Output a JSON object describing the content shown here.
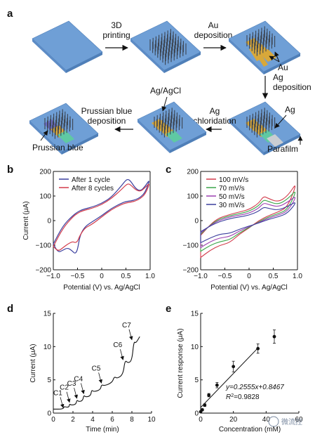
{
  "panel_labels": {
    "a": "a",
    "b": "b",
    "c": "c",
    "d": "d",
    "e": "e"
  },
  "panel_a": {
    "steps": {
      "printing_1": "3D",
      "printing_2": "printing",
      "au_1": "Au",
      "au_2": "deposition",
      "ag_1": "Ag",
      "ag_2": "deposition",
      "agcl_1": "Ag",
      "agcl_2": "chloridation",
      "pb_1": "Prussian blue",
      "pb_2": "deposition"
    },
    "labels": {
      "au": "Au",
      "ag": "Ag",
      "parafilm": "Parafilm",
      "agagcl": "Ag/AgCl",
      "prussian_blue": "Prussian blue"
    },
    "colors": {
      "substrate": "#6f9fd6",
      "needles": "#3c4450",
      "gold": "#d8a83a",
      "silver": "#c9cdd2",
      "green": "#5fc9a3",
      "prussian": "#6b6fc7"
    }
  },
  "chart_data": [
    {
      "panel": "b",
      "type": "line",
      "xlabel": "Potential (V) vs. Ag/AgCl",
      "ylabel": "Current (μA)",
      "xlim": [
        -1.0,
        1.0
      ],
      "ylim": [
        -200,
        200
      ],
      "xticks": [
        "-1.0",
        "-0.5",
        "0",
        "0.5",
        "1.0"
      ],
      "yticks": [
        "-200",
        "-100",
        "0",
        "100",
        "200"
      ],
      "legend_position": "top-left",
      "series": [
        {
          "name": "After 1 cycle",
          "color": "#3b3f9e",
          "x": [
            -1.0,
            -0.8,
            -0.6,
            -0.5,
            -0.4,
            -0.2,
            0.0,
            0.2,
            0.4,
            0.5,
            0.55,
            0.6,
            0.7,
            0.8,
            0.9,
            1.0,
            0.9,
            0.8,
            0.7,
            0.6,
            0.5,
            0.4,
            0.2,
            0.0,
            -0.2,
            -0.35,
            -0.45,
            -0.5,
            -0.55,
            -0.6,
            -0.7,
            -0.8,
            -0.9,
            -1.0
          ],
          "y": [
            -95,
            -20,
            20,
            35,
            45,
            55,
            70,
            95,
            140,
            165,
            168,
            160,
            130,
            120,
            140,
            170,
            115,
            95,
            85,
            80,
            78,
            70,
            50,
            20,
            -5,
            -25,
            -60,
            -120,
            -135,
            -125,
            -110,
            -120,
            -130,
            -95
          ]
        },
        {
          "name": "After 8 cycles",
          "color": "#d23a4a",
          "x": [
            -1.0,
            -0.8,
            -0.6,
            -0.5,
            -0.4,
            -0.2,
            0.0,
            0.2,
            0.4,
            0.5,
            0.55,
            0.6,
            0.7,
            0.8,
            0.9,
            1.0,
            0.9,
            0.8,
            0.7,
            0.6,
            0.5,
            0.4,
            0.2,
            0.0,
            -0.2,
            -0.35,
            -0.45,
            -0.5,
            -0.55,
            -0.6,
            -0.7,
            -0.8,
            -0.9,
            -1.0
          ],
          "y": [
            -105,
            -30,
            15,
            30,
            40,
            50,
            65,
            90,
            125,
            145,
            150,
            145,
            125,
            118,
            135,
            155,
            108,
            90,
            80,
            75,
            72,
            65,
            45,
            15,
            -15,
            -30,
            -60,
            -85,
            -90,
            -85,
            -95,
            -110,
            -125,
            -105
          ]
        }
      ]
    },
    {
      "panel": "c",
      "type": "line",
      "xlabel": "Potential (V) vs. Ag/AgCl",
      "ylabel": "",
      "xlim": [
        -1.0,
        1.0
      ],
      "ylim": [
        -200,
        200
      ],
      "xticks": [
        "-1.0",
        "-0.5",
        "0",
        "0.5",
        "1.0"
      ],
      "yticks": [
        "-200",
        "-100",
        "0",
        "100",
        "200"
      ],
      "legend_position": "top-left",
      "series": [
        {
          "name": "100 mV/s",
          "color": "#d23a4a",
          "x": [
            -1.0,
            -0.7,
            -0.4,
            -0.2,
            0.0,
            0.2,
            0.3,
            0.4,
            0.6,
            0.8,
            1.0,
            0.8,
            0.6,
            0.4,
            0.2,
            0.0,
            -0.2,
            -0.4,
            -0.6,
            -0.8,
            -1.0
          ],
          "y": [
            -60,
            5,
            25,
            35,
            45,
            70,
            100,
            90,
            75,
            100,
            160,
            55,
            35,
            20,
            0,
            -30,
            -55,
            -90,
            -100,
            -120,
            -150
          ]
        },
        {
          "name": "70 mV/s",
          "color": "#3ba64a",
          "x": [
            -1.0,
            -0.7,
            -0.4,
            -0.2,
            0.0,
            0.2,
            0.3,
            0.4,
            0.6,
            0.8,
            1.0,
            0.8,
            0.6,
            0.4,
            0.2,
            0.0,
            -0.2,
            -0.4,
            -0.6,
            -0.8,
            -1.0
          ],
          "y": [
            -55,
            0,
            20,
            28,
            38,
            60,
            85,
            78,
            65,
            88,
            130,
            45,
            28,
            15,
            -5,
            -28,
            -50,
            -78,
            -85,
            -100,
            -125
          ]
        },
        {
          "name": "50 mV/s",
          "color": "#9b3fb0",
          "x": [
            -1.0,
            -0.7,
            -0.4,
            -0.2,
            0.0,
            0.2,
            0.3,
            0.4,
            0.6,
            0.8,
            1.0,
            0.8,
            0.6,
            0.4,
            0.2,
            0.0,
            -0.2,
            -0.4,
            -0.6,
            -0.8,
            -1.0
          ],
          "y": [
            -50,
            -5,
            15,
            22,
            30,
            50,
            72,
            66,
            55,
            75,
            105,
            38,
            22,
            10,
            -8,
            -25,
            -42,
            -65,
            -70,
            -85,
            -110
          ]
        },
        {
          "name": "30 mV/s",
          "color": "#3b3f9e",
          "x": [
            -1.0,
            -0.7,
            -0.4,
            -0.2,
            0.0,
            0.2,
            0.3,
            0.4,
            0.6,
            0.8,
            1.0,
            0.8,
            0.6,
            0.4,
            0.2,
            0.0,
            -0.2,
            -0.4,
            -0.6,
            -0.8,
            -1.0
          ],
          "y": [
            -45,
            -10,
            8,
            15,
            22,
            38,
            55,
            50,
            42,
            58,
            80,
            30,
            15,
            5,
            -10,
            -22,
            -35,
            -52,
            -55,
            -70,
            -90
          ]
        }
      ]
    },
    {
      "panel": "d",
      "type": "line",
      "xlabel": "Time (min)",
      "ylabel": "Current (μA)",
      "xlim": [
        0,
        10
      ],
      "ylim": [
        0,
        15
      ],
      "xticks": [
        "0",
        "2",
        "4",
        "6",
        "8",
        "10"
      ],
      "yticks": [
        "0",
        "5",
        "10",
        "15"
      ],
      "series": [
        {
          "name": "",
          "color": "#111111",
          "x": [
            0.0,
            1.0,
            1.1,
            1.3,
            1.6,
            1.65,
            1.8,
            2.3,
            2.4,
            2.6,
            3.0,
            3.1,
            3.3,
            3.8,
            3.9,
            4.1,
            4.8,
            4.9,
            5.2,
            6.0,
            6.2,
            6.5,
            7.1,
            7.3,
            7.6,
            8.0,
            8.2,
            8.4,
            8.8
          ],
          "y": [
            0.6,
            0.6,
            1.0,
            0.9,
            0.9,
            1.4,
            1.2,
            1.3,
            2.0,
            1.7,
            1.9,
            2.7,
            2.4,
            2.6,
            3.5,
            3.2,
            3.5,
            4.3,
            4.1,
            4.6,
            5.5,
            5.2,
            5.8,
            8.0,
            7.5,
            7.9,
            10.8,
            10.5,
            11.5
          ]
        }
      ],
      "annotations": [
        {
          "label": "C1",
          "x": 1.0,
          "y": 0.6
        },
        {
          "label": "C2",
          "x": 1.65,
          "y": 1.4
        },
        {
          "label": "C3",
          "x": 2.4,
          "y": 2.0
        },
        {
          "label": "C4",
          "x": 3.1,
          "y": 2.7
        },
        {
          "label": "C5",
          "x": 4.9,
          "y": 4.3
        },
        {
          "label": "C6",
          "x": 7.1,
          "y": 7.8
        },
        {
          "label": "C7",
          "x": 8.0,
          "y": 10.8
        }
      ]
    },
    {
      "panel": "e",
      "type": "scatter",
      "xlabel": "Concentration (mM)",
      "ylabel": "Current response (μA)",
      "xlim": [
        0,
        60
      ],
      "ylim": [
        0,
        15
      ],
      "xticks": [
        "0",
        "20",
        "40",
        "60"
      ],
      "yticks": [
        "0",
        "5",
        "10",
        "15"
      ],
      "points": {
        "x": [
          0,
          1,
          2.5,
          5,
          10,
          20,
          35,
          45
        ],
        "y": [
          0.2,
          0.5,
          1.2,
          2.7,
          4.2,
          7.0,
          9.7,
          11.5
        ],
        "err": [
          0.1,
          0.15,
          0.2,
          0.25,
          0.4,
          0.8,
          0.7,
          1.0
        ]
      },
      "fit": {
        "slope": 0.2555,
        "intercept": 0.8467,
        "x_range": [
          0,
          35
        ]
      },
      "equation": "y=0.2555x+0.8467",
      "r2_prefix": "R",
      "r2_sup": "2",
      "r2_value": "=0.9828"
    }
  ],
  "watermark": "微流控"
}
